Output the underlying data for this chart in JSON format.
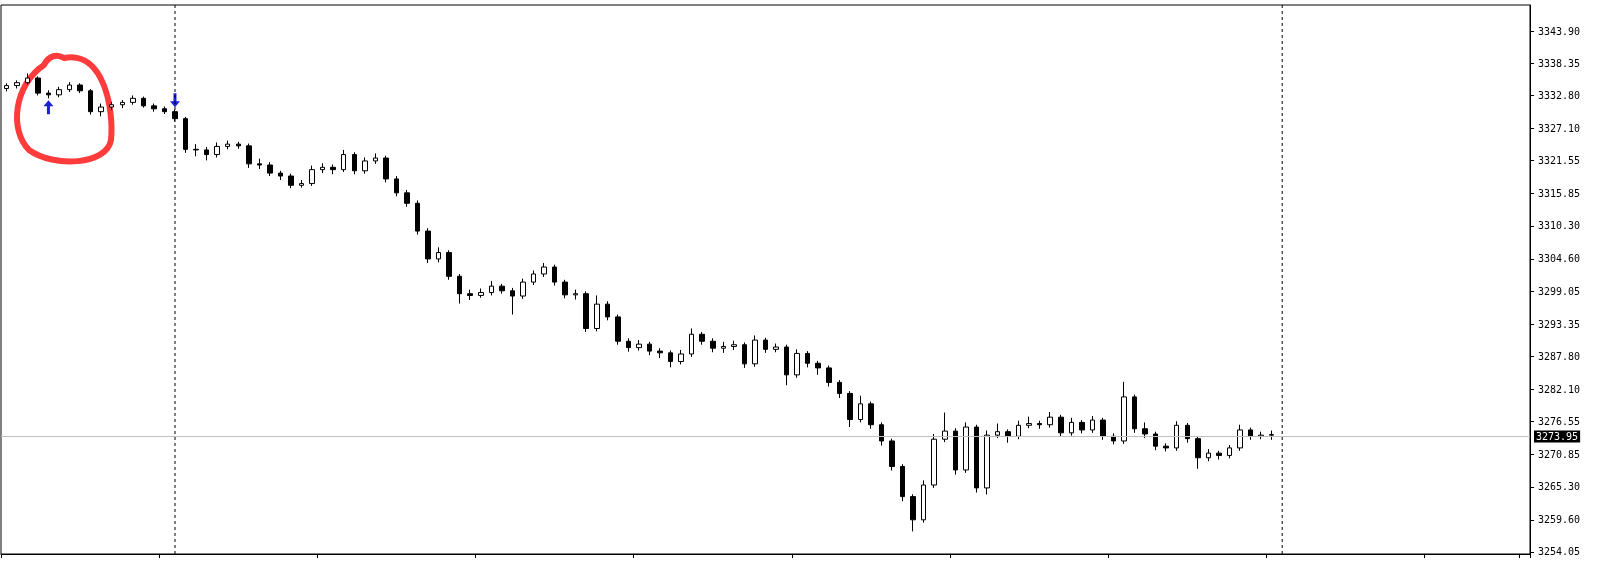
{
  "chart_data": {
    "type": "candlestick",
    "color": "#000000",
    "tick_labels": "y",
    "grid": false,
    "categories": [
      null,
      null,
      null,
      null,
      null,
      null,
      null,
      null,
      null,
      null,
      null,
      null,
      null,
      null,
      null,
      null,
      null,
      null,
      null,
      null,
      null,
      null,
      null,
      null,
      null,
      null,
      null,
      null,
      null,
      null,
      null,
      null,
      null,
      null,
      null,
      null,
      null,
      null,
      null,
      null,
      null,
      null,
      null,
      null,
      null,
      null,
      null,
      null,
      null,
      null,
      null,
      null,
      null,
      null,
      null,
      null,
      null,
      null,
      null,
      null,
      null,
      null,
      null,
      null,
      null,
      null,
      null,
      null,
      null,
      null,
      null,
      null,
      null,
      null,
      null,
      null,
      null,
      null,
      null,
      null,
      null,
      null,
      null,
      null,
      null,
      null,
      null,
      null,
      null,
      null,
      null,
      null,
      null,
      null,
      null,
      null,
      null,
      null,
      null,
      null,
      null,
      null,
      null,
      null,
      null,
      null,
      null,
      null,
      null,
      null,
      null,
      null,
      null,
      null,
      null,
      null,
      null,
      null,
      null,
      null,
      null,
      null,
      null,
      null,
      null,
      null,
      null,
      null,
      null,
      null,
      null,
      null,
      null,
      null,
      null,
      null,
      null,
      null,
      null,
      null,
      null,
      null,
      null,
      null,
      null
    ],
    "ohlc": [
      [
        3334.0,
        3334.9,
        3333.5,
        3334.5
      ],
      [
        3334.5,
        3335.4,
        3334.0,
        3335.0
      ],
      [
        3335.0,
        3336.6,
        3334.7,
        3335.8
      ],
      [
        3335.8,
        3336.1,
        3332.8,
        3333.2
      ],
      [
        3333.2,
        3333.7,
        3332.3,
        3332.9
      ],
      [
        3332.9,
        3334.3,
        3332.5,
        3333.8
      ],
      [
        3333.8,
        3335.1,
        3333.4,
        3334.6
      ],
      [
        3334.6,
        3334.9,
        3333.2,
        3333.6
      ],
      [
        3333.6,
        3333.9,
        3329.5,
        3330.0
      ],
      [
        3330.0,
        3331.4,
        3329.2,
        3330.8
      ],
      [
        3330.8,
        3331.7,
        3330.3,
        3331.2
      ],
      [
        3331.2,
        3332.0,
        3330.6,
        3331.6
      ],
      [
        3331.6,
        3332.8,
        3331.2,
        3332.3
      ],
      [
        3332.3,
        3332.6,
        3330.7,
        3331.0
      ],
      [
        3331.0,
        3331.4,
        3330.0,
        3330.5
      ],
      [
        3330.5,
        3330.9,
        3329.6,
        3330.0
      ],
      [
        3330.0,
        3330.4,
        3328.3,
        3328.8
      ],
      [
        3328.8,
        3329.1,
        3322.9,
        3323.5
      ],
      [
        3323.5,
        3324.4,
        3322.3,
        3323.4
      ],
      [
        3323.4,
        3323.9,
        3321.6,
        3322.6
      ],
      [
        3322.6,
        3324.7,
        3322.1,
        3324.0
      ],
      [
        3324.0,
        3325.0,
        3323.5,
        3324.4
      ],
      [
        3324.4,
        3324.8,
        3323.6,
        3324.1
      ],
      [
        3324.1,
        3324.5,
        3320.3,
        3321.0
      ],
      [
        3321.0,
        3321.9,
        3320.1,
        3320.8
      ],
      [
        3320.8,
        3321.3,
        3318.9,
        3319.4
      ],
      [
        3319.4,
        3319.8,
        3318.2,
        3318.9
      ],
      [
        3318.9,
        3319.3,
        3316.8,
        3317.3
      ],
      [
        3317.3,
        3318.2,
        3316.9,
        3317.6
      ],
      [
        3317.6,
        3320.7,
        3317.2,
        3320.0
      ],
      [
        3320.0,
        3321.1,
        3319.4,
        3320.4
      ],
      [
        3320.4,
        3320.9,
        3319.2,
        3320.0
      ],
      [
        3320.0,
        3323.4,
        3319.6,
        3322.6
      ],
      [
        3322.6,
        3323.0,
        3319.2,
        3319.8
      ],
      [
        3319.8,
        3322.1,
        3319.3,
        3321.5
      ],
      [
        3321.5,
        3322.8,
        3321.0,
        3322.0
      ],
      [
        3322.0,
        3322.4,
        3317.8,
        3318.4
      ],
      [
        3318.4,
        3318.9,
        3315.4,
        3316.0
      ],
      [
        3316.0,
        3316.5,
        3313.6,
        3314.2
      ],
      [
        3314.2,
        3314.7,
        3308.8,
        3309.4
      ],
      [
        3309.4,
        3309.9,
        3303.9,
        3304.6
      ],
      [
        3304.6,
        3306.6,
        3304.0,
        3305.7
      ],
      [
        3305.7,
        3306.1,
        3301.0,
        3301.6
      ],
      [
        3301.6,
        3302.0,
        3296.9,
        3298.6
      ],
      [
        3298.6,
        3299.3,
        3297.5,
        3298.3
      ],
      [
        3298.3,
        3299.5,
        3297.9,
        3298.8
      ],
      [
        3298.8,
        3300.8,
        3298.3,
        3299.9
      ],
      [
        3299.9,
        3300.3,
        3298.6,
        3299.1
      ],
      [
        3299.1,
        3299.6,
        3295.0,
        3298.2
      ],
      [
        3298.2,
        3301.2,
        3297.7,
        3300.6
      ],
      [
        3300.6,
        3302.6,
        3300.1,
        3302.0
      ],
      [
        3302.0,
        3303.9,
        3301.5,
        3303.2
      ],
      [
        3303.2,
        3303.6,
        3300.0,
        3300.6
      ],
      [
        3300.6,
        3301.0,
        3297.8,
        3298.4
      ],
      [
        3298.4,
        3299.3,
        3297.6,
        3298.6
      ],
      [
        3298.6,
        3299.0,
        3292.0,
        3292.6
      ],
      [
        3292.6,
        3298.3,
        3292.1,
        3296.8
      ],
      [
        3296.8,
        3297.3,
        3294.0,
        3294.6
      ],
      [
        3294.6,
        3295.0,
        3289.8,
        3290.4
      ],
      [
        3290.4,
        3290.9,
        3288.6,
        3289.3
      ],
      [
        3289.3,
        3290.6,
        3288.8,
        3289.9
      ],
      [
        3289.9,
        3290.3,
        3288.0,
        3288.7
      ],
      [
        3288.7,
        3289.2,
        3287.5,
        3288.4
      ],
      [
        3288.4,
        3288.8,
        3285.9,
        3286.9
      ],
      [
        3286.9,
        3288.9,
        3286.4,
        3288.2
      ],
      [
        3288.2,
        3292.6,
        3287.7,
        3291.6
      ],
      [
        3291.6,
        3292.0,
        3289.8,
        3290.4
      ],
      [
        3290.4,
        3290.9,
        3288.5,
        3289.2
      ],
      [
        3289.2,
        3290.3,
        3288.4,
        3289.5
      ],
      [
        3289.5,
        3290.5,
        3288.9,
        3289.8
      ],
      [
        3289.8,
        3290.2,
        3285.8,
        3286.5
      ],
      [
        3286.5,
        3291.4,
        3286.0,
        3290.6
      ],
      [
        3290.6,
        3291.0,
        3288.4,
        3289.0
      ],
      [
        3289.0,
        3290.0,
        3288.5,
        3289.4
      ],
      [
        3289.4,
        3289.8,
        3282.8,
        3284.6
      ],
      [
        3284.6,
        3289.0,
        3284.1,
        3288.3
      ],
      [
        3288.3,
        3288.7,
        3285.9,
        3286.6
      ],
      [
        3286.6,
        3287.0,
        3284.6,
        3285.8
      ],
      [
        3285.8,
        3286.2,
        3282.6,
        3283.3
      ],
      [
        3283.3,
        3283.7,
        3280.6,
        3281.4
      ],
      [
        3281.4,
        3281.8,
        3275.6,
        3276.9
      ],
      [
        3276.9,
        3281.0,
        3276.4,
        3279.6
      ],
      [
        3279.6,
        3280.0,
        3275.3,
        3276.0
      ],
      [
        3276.0,
        3276.4,
        3272.4,
        3273.2
      ],
      [
        3273.2,
        3273.6,
        3268.1,
        3268.8
      ],
      [
        3268.8,
        3269.2,
        3262.8,
        3263.6
      ],
      [
        3263.6,
        3264.0,
        3257.6,
        3259.6
      ],
      [
        3259.6,
        3266.4,
        3259.1,
        3265.6
      ],
      [
        3265.6,
        3274.4,
        3265.1,
        3273.5
      ],
      [
        3273.5,
        3278.1,
        3273.0,
        3274.9
      ],
      [
        3274.9,
        3275.4,
        3267.4,
        3268.2
      ],
      [
        3268.2,
        3276.4,
        3267.7,
        3275.6
      ],
      [
        3275.6,
        3276.0,
        3264.3,
        3265.1
      ],
      [
        3265.1,
        3275.0,
        3264.0,
        3274.2
      ],
      [
        3274.2,
        3276.2,
        3273.7,
        3274.8
      ],
      [
        3274.8,
        3275.2,
        3272.9,
        3274.0
      ],
      [
        3274.0,
        3276.7,
        3273.5,
        3275.9
      ],
      [
        3275.9,
        3277.4,
        3275.4,
        3276.2
      ],
      [
        3276.2,
        3276.7,
        3275.3,
        3276.0
      ],
      [
        3276.0,
        3278.2,
        3275.5,
        3277.3
      ],
      [
        3277.3,
        3277.7,
        3273.9,
        3274.6
      ],
      [
        3274.6,
        3277.2,
        3274.1,
        3276.4
      ],
      [
        3276.4,
        3276.8,
        3274.5,
        3275.1
      ],
      [
        3275.1,
        3277.5,
        3274.6,
        3276.8
      ],
      [
        3276.8,
        3277.2,
        3273.4,
        3274.0
      ],
      [
        3274.0,
        3274.5,
        3272.6,
        3273.2
      ],
      [
        3273.2,
        3283.4,
        3272.7,
        3280.8
      ],
      [
        3280.8,
        3281.2,
        3274.6,
        3275.3
      ],
      [
        3275.3,
        3276.4,
        3273.7,
        3274.4
      ],
      [
        3274.4,
        3274.8,
        3271.6,
        3272.3
      ],
      [
        3272.3,
        3272.8,
        3271.4,
        3272.0
      ],
      [
        3272.0,
        3276.6,
        3271.5,
        3275.9
      ],
      [
        3275.9,
        3276.3,
        3272.9,
        3273.6
      ],
      [
        3273.6,
        3274.0,
        3268.4,
        3270.3
      ],
      [
        3270.3,
        3271.8,
        3269.7,
        3271.1
      ],
      [
        3271.1,
        3271.5,
        3270.0,
        3270.7
      ],
      [
        3270.7,
        3272.5,
        3270.2,
        3272.0
      ],
      [
        3272.0,
        3276.0,
        3271.5,
        3275.1
      ],
      [
        3275.1,
        3275.5,
        3273.4,
        3274.0
      ],
      [
        3274.0,
        3274.8,
        3273.5,
        3274.2
      ],
      [
        3274.2,
        3275.0,
        3273.4,
        3274.3
      ],
      null,
      null,
      null,
      null,
      null,
      null,
      null,
      null,
      null,
      null,
      null,
      null,
      null,
      null,
      null,
      null,
      null,
      null,
      null,
      null,
      null,
      null,
      null,
      null
    ],
    "ylim": [
      3253.7,
      3348.4
    ],
    "yticks": [
      {
        "value": 3343.9,
        "label": "3343.90"
      },
      {
        "value": 3338.35,
        "label": "3338.35"
      },
      {
        "value": 3332.8,
        "label": "3332.80"
      },
      {
        "value": 3327.1,
        "label": "3327.10"
      },
      {
        "value": 3321.55,
        "label": "3321.55"
      },
      {
        "value": 3315.85,
        "label": "3315.85"
      },
      {
        "value": 3310.3,
        "label": "3310.30"
      },
      {
        "value": 3304.6,
        "label": "3304.60"
      },
      {
        "value": 3299.05,
        "label": "3299.05"
      },
      {
        "value": 3293.35,
        "label": "3293.35"
      },
      {
        "value": 3287.8,
        "label": "3287.80"
      },
      {
        "value": 3282.1,
        "label": "3282.10"
      },
      {
        "value": 3276.55,
        "label": "3276.55"
      },
      {
        "value": 3270.85,
        "label": "3270.85"
      },
      {
        "value": 3265.3,
        "label": "3265.30"
      },
      {
        "value": 3259.6,
        "label": "3259.60"
      },
      {
        "value": 3254.05,
        "label": "3254.05"
      }
    ],
    "ref_lines": [
      {
        "axis": "y",
        "value": 3273.95,
        "label": "3273.95",
        "color": "#c0c0c0"
      }
    ]
  }
}
